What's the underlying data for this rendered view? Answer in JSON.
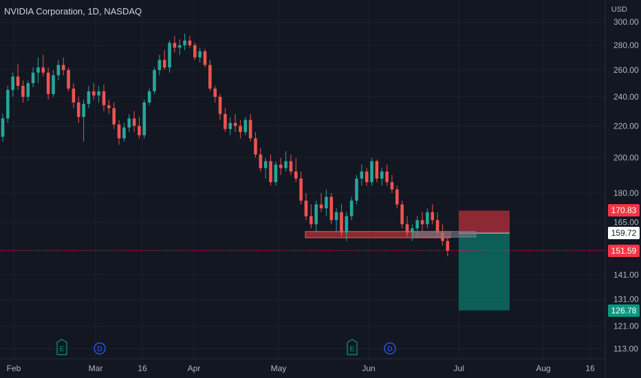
{
  "header": {
    "title": "NVIDIA Corporation, 1D, NASDAQ"
  },
  "axis": {
    "unit": "USD"
  },
  "colors": {
    "bg": "#131722",
    "grid": "#1e222d",
    "up": "#26a69a",
    "down": "#ef5350",
    "text": "#b2b5be",
    "stop": "#f7525f",
    "target": "#089981",
    "current": "#f23645"
  },
  "price_tags": {
    "stop": "170.83",
    "entry": "159.72",
    "current": "151.59",
    "target": "126.78"
  },
  "chart_data": {
    "type": "candlestick",
    "title": "NVIDIA Corporation, 1D, NASDAQ",
    "y_scale": "log",
    "ylim": [
      112,
      302
    ],
    "y_ticks": [
      "300.00",
      "280.00",
      "260.00",
      "240.00",
      "220.00",
      "200.00",
      "180.00",
      "165.00",
      "141.00",
      "131.00",
      "121.00",
      "113.00"
    ],
    "x_ticks": [
      "Feb",
      "Mar",
      "16",
      "Apr",
      "May",
      "Jun",
      "Jul",
      "Aug",
      "16"
    ],
    "events": [
      "E",
      "D",
      "E",
      "D"
    ],
    "support_zone": [
      157.5,
      160.5
    ],
    "position": {
      "side": "short",
      "entry": 159.72,
      "stop": 170.83,
      "target": 126.78,
      "current": 151.59
    },
    "candles": [
      [
        213,
        228,
        210,
        225
      ],
      [
        225,
        248,
        222,
        245
      ],
      [
        245,
        258,
        240,
        255
      ],
      [
        255,
        265,
        245,
        248
      ],
      [
        248,
        252,
        236,
        240
      ],
      [
        240,
        252,
        237,
        250
      ],
      [
        250,
        262,
        247,
        258
      ],
      [
        258,
        270,
        250,
        262
      ],
      [
        262,
        272,
        255,
        258
      ],
      [
        258,
        262,
        238,
        242
      ],
      [
        242,
        260,
        240,
        256
      ],
      [
        256,
        268,
        252,
        264
      ],
      [
        264,
        270,
        256,
        260
      ],
      [
        260,
        262,
        244,
        246
      ],
      [
        246,
        250,
        232,
        236
      ],
      [
        236,
        240,
        222,
        226
      ],
      [
        226,
        238,
        210,
        235
      ],
      [
        235,
        248,
        232,
        244
      ],
      [
        244,
        250,
        238,
        241
      ],
      [
        241,
        248,
        236,
        244
      ],
      [
        244,
        249,
        230,
        234
      ],
      [
        234,
        238,
        228,
        232
      ],
      [
        232,
        236,
        218,
        221
      ],
      [
        221,
        224,
        208,
        212
      ],
      [
        212,
        222,
        210,
        219
      ],
      [
        219,
        228,
        216,
        225
      ],
      [
        225,
        230,
        216,
        220
      ],
      [
        220,
        226,
        212,
        214
      ],
      [
        214,
        238,
        212,
        236
      ],
      [
        236,
        246,
        234,
        244
      ],
      [
        244,
        262,
        242,
        260
      ],
      [
        260,
        272,
        256,
        268
      ],
      [
        268,
        276,
        260,
        262
      ],
      [
        262,
        284,
        258,
        282
      ],
      [
        282,
        288,
        274,
        278
      ],
      [
        278,
        285,
        272,
        280
      ],
      [
        280,
        290,
        276,
        284
      ],
      [
        284,
        288,
        278,
        280
      ],
      [
        280,
        282,
        268,
        270
      ],
      [
        270,
        278,
        266,
        275
      ],
      [
        275,
        277,
        262,
        264
      ],
      [
        264,
        268,
        244,
        246
      ],
      [
        246,
        248,
        236,
        240
      ],
      [
        240,
        242,
        224,
        228
      ],
      [
        228,
        232,
        216,
        218
      ],
      [
        218,
        226,
        214,
        222
      ],
      [
        222,
        228,
        216,
        220
      ],
      [
        220,
        224,
        212,
        216
      ],
      [
        216,
        226,
        214,
        224
      ],
      [
        224,
        228,
        210,
        212
      ],
      [
        212,
        216,
        200,
        202
      ],
      [
        202,
        206,
        192,
        194
      ],
      [
        194,
        200,
        188,
        198
      ],
      [
        198,
        202,
        184,
        186
      ],
      [
        186,
        198,
        184,
        196
      ],
      [
        196,
        200,
        190,
        194
      ],
      [
        194,
        204,
        192,
        198
      ],
      [
        198,
        202,
        190,
        192
      ],
      [
        192,
        200,
        186,
        188
      ],
      [
        188,
        192,
        174,
        176
      ],
      [
        176,
        180,
        166,
        168
      ],
      [
        168,
        174,
        162,
        164
      ],
      [
        164,
        176,
        160,
        174
      ],
      [
        174,
        180,
        170,
        172
      ],
      [
        172,
        182,
        168,
        178
      ],
      [
        178,
        180,
        164,
        166
      ],
      [
        166,
        172,
        160,
        170
      ],
      [
        170,
        174,
        158,
        160
      ],
      [
        160,
        170,
        156,
        168
      ],
      [
        168,
        178,
        166,
        176
      ],
      [
        176,
        190,
        174,
        188
      ],
      [
        188,
        196,
        184,
        192
      ],
      [
        192,
        194,
        184,
        186
      ],
      [
        186,
        200,
        184,
        198
      ],
      [
        198,
        199,
        186,
        188
      ],
      [
        188,
        194,
        184,
        192
      ],
      [
        192,
        196,
        184,
        186
      ],
      [
        186,
        190,
        180,
        182
      ],
      [
        182,
        184,
        172,
        174
      ],
      [
        174,
        176,
        162,
        164
      ],
      [
        164,
        168,
        158,
        160
      ],
      [
        160,
        164,
        156,
        162
      ],
      [
        162,
        168,
        158,
        166
      ],
      [
        166,
        170,
        160,
        164
      ],
      [
        164,
        172,
        162,
        170
      ],
      [
        170,
        174,
        164,
        166
      ],
      [
        166,
        170,
        158,
        160
      ],
      [
        160,
        164,
        154,
        156
      ],
      [
        156,
        158,
        149,
        151.59
      ]
    ]
  }
}
